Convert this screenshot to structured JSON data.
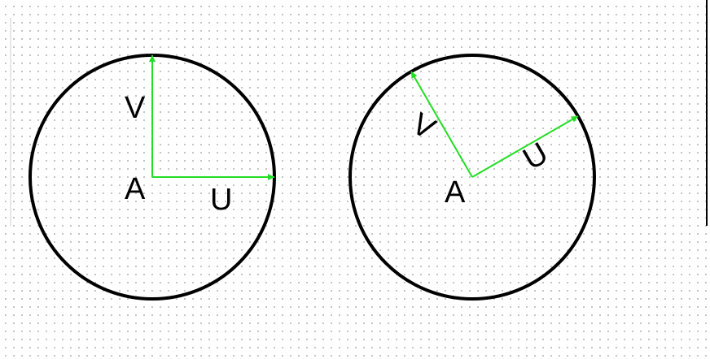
{
  "figures": [
    {
      "id": "left",
      "center_label": "A",
      "vector_u": {
        "label": "U",
        "angle_deg": 0
      },
      "vector_v": {
        "label": "V",
        "angle_deg": 90
      }
    },
    {
      "id": "right",
      "center_label": "A",
      "vector_u": {
        "label": "U",
        "angle_deg": 30
      },
      "vector_v": {
        "label": "V",
        "angle_deg": 120
      }
    }
  ],
  "colors": {
    "circle": "#000000",
    "vector": "#22dd22",
    "label": "#000000",
    "grid_dot": "#b4b4b4"
  }
}
